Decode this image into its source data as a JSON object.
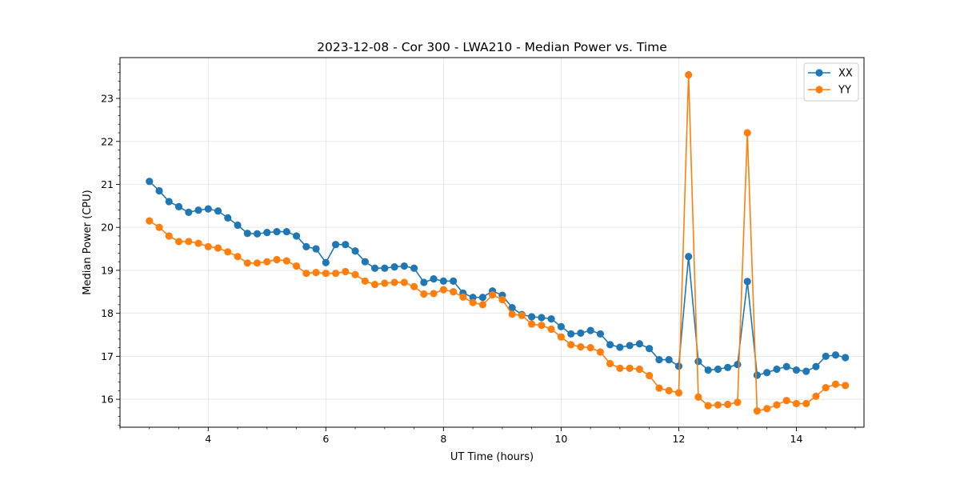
{
  "chart_data": {
    "type": "line",
    "title": "2023-12-08 - Cor 300 - LWA210 - Median Power vs. Time",
    "xlabel": "UT Time (hours)",
    "ylabel": "Median Power (CPU)",
    "xlim": [
      2.5,
      15.15
    ],
    "ylim": [
      15.35,
      23.95
    ],
    "xticks": [
      4,
      6,
      8,
      10,
      12,
      14
    ],
    "yticks": [
      16,
      17,
      18,
      19,
      20,
      21,
      22,
      23
    ],
    "grid": true,
    "legend_position": "top-right",
    "x": [
      3.0,
      3.167,
      3.333,
      3.5,
      3.667,
      3.833,
      4.0,
      4.167,
      4.333,
      4.5,
      4.667,
      4.833,
      5.0,
      5.167,
      5.333,
      5.5,
      5.667,
      5.833,
      6.0,
      6.167,
      6.333,
      6.5,
      6.667,
      6.833,
      7.0,
      7.167,
      7.333,
      7.5,
      7.667,
      7.833,
      8.0,
      8.167,
      8.333,
      8.5,
      8.667,
      8.833,
      9.0,
      9.167,
      9.333,
      9.5,
      9.667,
      9.833,
      10.0,
      10.167,
      10.333,
      10.5,
      10.667,
      10.833,
      11.0,
      11.167,
      11.333,
      11.5,
      11.667,
      11.833,
      12.0,
      12.167,
      12.333,
      12.5,
      12.667,
      12.833,
      13.0,
      13.167,
      13.333,
      13.5,
      13.667,
      13.833,
      14.0,
      14.167,
      14.333,
      14.5,
      14.667,
      14.833
    ],
    "series": [
      {
        "name": "XX",
        "color": "#1f77b4",
        "values": [
          21.07,
          20.85,
          20.6,
          20.48,
          20.35,
          20.4,
          20.43,
          20.38,
          20.22,
          20.05,
          19.86,
          19.85,
          19.88,
          19.9,
          19.9,
          19.8,
          19.55,
          19.5,
          19.18,
          19.6,
          19.6,
          19.45,
          19.2,
          19.05,
          19.05,
          19.08,
          19.1,
          19.05,
          18.72,
          18.8,
          18.75,
          18.75,
          18.47,
          18.37,
          18.37,
          18.52,
          18.42,
          18.13,
          17.97,
          17.92,
          17.9,
          17.87,
          17.69,
          17.52,
          17.54,
          17.6,
          17.52,
          17.27,
          17.21,
          17.25,
          17.29,
          17.18,
          16.92,
          16.92,
          16.77,
          19.32,
          16.88,
          16.68,
          16.7,
          16.74,
          16.81,
          18.74,
          16.56,
          16.62,
          16.7,
          16.76,
          16.68,
          16.65,
          16.76,
          17.0,
          17.03,
          16.97
        ]
      },
      {
        "name": "YY",
        "color": "#ff7f0e",
        "values": [
          20.15,
          20.0,
          19.8,
          19.67,
          19.67,
          19.63,
          19.55,
          19.52,
          19.43,
          19.32,
          19.17,
          19.17,
          19.2,
          19.25,
          19.22,
          19.1,
          18.93,
          18.95,
          18.93,
          18.93,
          18.97,
          18.9,
          18.75,
          18.67,
          18.7,
          18.72,
          18.72,
          18.62,
          18.45,
          18.46,
          18.55,
          18.5,
          18.38,
          18.25,
          18.2,
          18.43,
          18.32,
          17.98,
          17.95,
          17.75,
          17.72,
          17.63,
          17.45,
          17.27,
          17.22,
          17.2,
          17.1,
          16.83,
          16.72,
          16.72,
          16.7,
          16.55,
          16.26,
          16.2,
          16.15,
          23.55,
          16.05,
          15.85,
          15.87,
          15.88,
          15.93,
          22.2,
          15.73,
          15.78,
          15.87,
          15.97,
          15.9,
          15.9,
          16.07,
          16.27,
          16.35,
          16.32
        ]
      }
    ]
  }
}
